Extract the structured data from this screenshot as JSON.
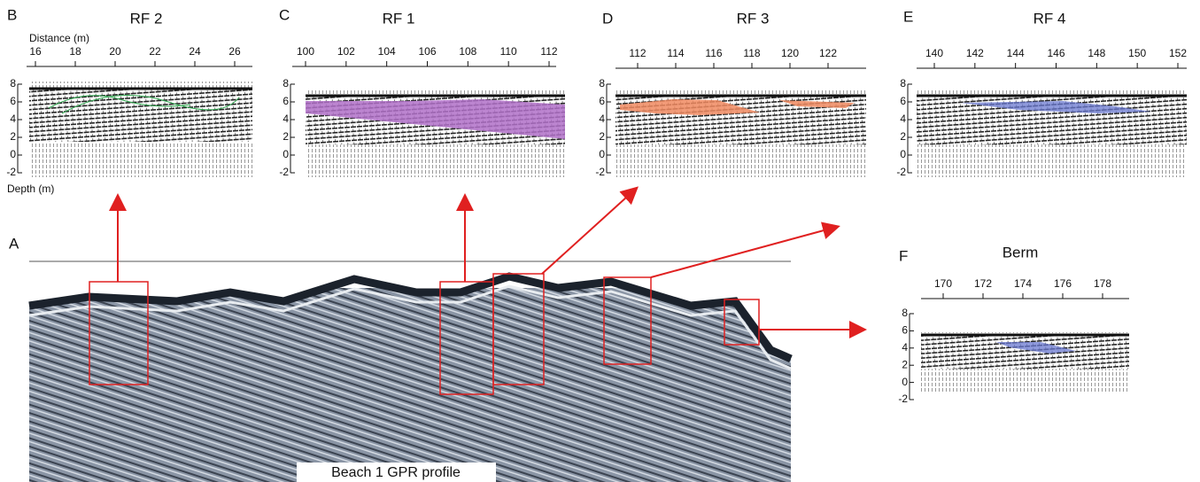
{
  "panels": [
    {
      "letter": "B",
      "title": "RF 2",
      "x_label": "Distance (m)",
      "y_label": "Depth (m)",
      "xticks": [
        16,
        18,
        20,
        22,
        24,
        26
      ],
      "yticks": [
        8,
        6,
        4,
        2,
        0,
        -2
      ]
    },
    {
      "letter": "C",
      "title": "RF 1",
      "xticks": [
        100,
        102,
        104,
        106,
        108,
        110,
        112
      ],
      "yticks": [
        8,
        6,
        4,
        2,
        0,
        -2
      ]
    },
    {
      "letter": "D",
      "title": "RF 3",
      "xticks": [
        112,
        114,
        116,
        118,
        120,
        122
      ],
      "yticks": [
        8,
        6,
        4,
        2,
        0,
        -2
      ]
    },
    {
      "letter": "E",
      "title": "RF 4",
      "xticks": [
        140,
        142,
        144,
        146,
        148,
        150,
        152
      ],
      "yticks": [
        8,
        6,
        4,
        2,
        0,
        -2
      ]
    },
    {
      "letter": "F",
      "title": "Berm",
      "xticks": [
        170,
        172,
        174,
        176,
        178
      ],
      "yticks": [
        8,
        6,
        4,
        2,
        0,
        -2
      ]
    }
  ],
  "profile": {
    "letter": "A",
    "label": "Beach 1 GPR profile"
  }
}
